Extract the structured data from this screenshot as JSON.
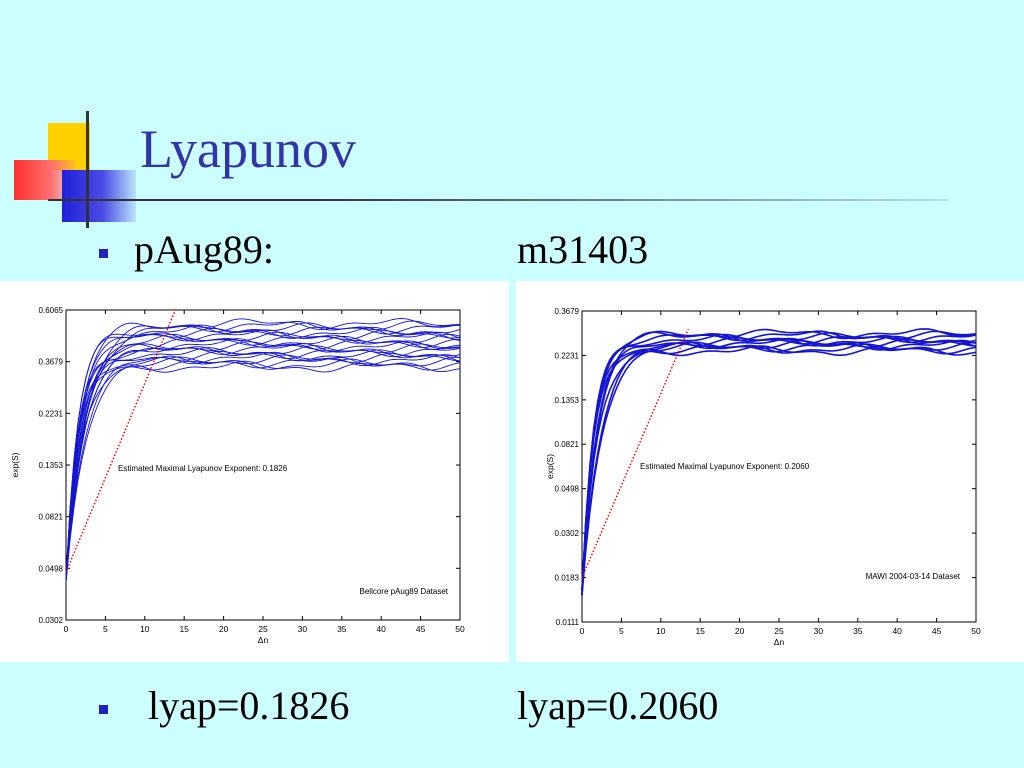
{
  "slide": {
    "title": "Lyapunov",
    "bullet1": {
      "left": "pAug89:",
      "right": "m31403"
    },
    "bullet2": {
      "left": "lyap=0.1826",
      "right": "lyap=0.2060"
    }
  },
  "colors": {
    "background": "#ccffff",
    "title": "#3333aa",
    "series": "#1515d0",
    "fit": "#e00000"
  },
  "chart_data": [
    {
      "type": "line",
      "xlabel": "Δn",
      "ylabel": "exp(S)",
      "x_ticks": [
        0,
        5,
        10,
        15,
        20,
        25,
        30,
        35,
        40,
        45,
        50
      ],
      "y_tick_labels": [
        "0.0302",
        "0.0498",
        "0.0821",
        "0.1353",
        "0.2231",
        "0.3679",
        "0.6065"
      ],
      "xlim": [
        0,
        50
      ],
      "ylim": [
        0.0302,
        0.6065
      ],
      "y_scale": "log",
      "annotation": "Estimated Maximal Lyapunov Exponent: 0.1826",
      "dataset_label": "Bellcore pAug89 Dataset",
      "exponent": 0.1826,
      "series_count": 20,
      "series_start": 0.045,
      "plateau_range": [
        0.35,
        0.53
      ],
      "fit_line": {
        "x": [
          0,
          14
        ],
        "y": [
          0.048,
          0.62
        ]
      }
    },
    {
      "type": "line",
      "xlabel": "Δn",
      "ylabel": "exp(S)",
      "x_ticks": [
        0,
        5,
        10,
        15,
        20,
        25,
        30,
        35,
        40,
        45,
        50
      ],
      "y_tick_labels": [
        "0.0111",
        "0.0183",
        "0.0302",
        "0.0498",
        "0.0821",
        "0.1353",
        "0.2231",
        "0.3679"
      ],
      "xlim": [
        0,
        50
      ],
      "ylim": [
        0.0111,
        0.3679
      ],
      "y_scale": "log",
      "annotation": "Estimated Maximal Lyapunov Exponent: 0.2060",
      "dataset_label": "MAWI 2004-03-14 Dataset",
      "exponent": 0.206,
      "series_count": 10,
      "series_start": 0.0155,
      "plateau_range": [
        0.235,
        0.285
      ],
      "fit_line": {
        "x": [
          0,
          13.5
        ],
        "y": [
          0.0183,
          0.3
        ]
      }
    }
  ]
}
